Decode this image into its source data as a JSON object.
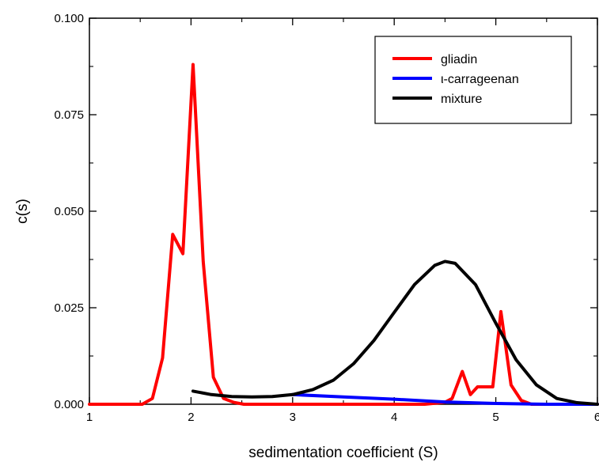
{
  "chart_data": {
    "type": "line",
    "xlabel": "sedimentation coefficient (S)",
    "ylabel": "c(s)",
    "xlim": [
      1,
      6
    ],
    "ylim": [
      0,
      0.1
    ],
    "x_ticks": [
      "1",
      "2",
      "3",
      "4",
      "5",
      "6"
    ],
    "y_ticks": [
      "0.000",
      "0.025",
      "0.050",
      "0.075",
      "0.100"
    ],
    "grid": false,
    "legend_position": "top-right",
    "series": [
      {
        "name": "gliadin",
        "color": "#ff0000",
        "x": [
          1.0,
          1.2,
          1.4,
          1.52,
          1.62,
          1.72,
          1.82,
          1.92,
          2.02,
          2.12,
          2.22,
          2.32,
          2.42,
          2.52,
          2.7,
          3.0,
          3.5,
          4.0,
          4.3,
          4.5,
          4.57,
          4.67,
          4.75,
          4.82,
          4.9,
          4.97,
          5.05,
          5.15,
          5.25,
          5.35,
          5.5,
          5.8,
          6.0
        ],
        "y": [
          0.0,
          0.0,
          0.0,
          0.0,
          0.0015,
          0.012,
          0.044,
          0.039,
          0.088,
          0.037,
          0.007,
          0.0015,
          0.0005,
          0.0,
          0.0,
          0.0,
          0.0,
          0.0,
          0.0,
          0.0005,
          0.0015,
          0.0085,
          0.0025,
          0.0045,
          0.0045,
          0.0045,
          0.024,
          0.005,
          0.001,
          0.0,
          0.0,
          0.0,
          0.0
        ]
      },
      {
        "name": "ι-carrageenan",
        "color": "#0000ff",
        "x": [
          3.0,
          3.5,
          4.0,
          4.5,
          5.0,
          5.5,
          6.0
        ],
        "y": [
          0.0025,
          0.0019,
          0.0013,
          0.0006,
          0.0002,
          0.0,
          0.0
        ]
      },
      {
        "name": "mixture",
        "color": "#000000",
        "x": [
          2.02,
          2.2,
          2.4,
          2.6,
          2.8,
          3.0,
          3.2,
          3.4,
          3.6,
          3.8,
          4.0,
          4.2,
          4.4,
          4.5,
          4.6,
          4.8,
          5.0,
          5.2,
          5.4,
          5.6,
          5.8,
          6.0
        ],
        "y": [
          0.0034,
          0.0025,
          0.002,
          0.0019,
          0.002,
          0.0025,
          0.0038,
          0.0062,
          0.0105,
          0.0165,
          0.0238,
          0.031,
          0.036,
          0.037,
          0.0365,
          0.031,
          0.021,
          0.0115,
          0.005,
          0.0015,
          0.0004,
          0.0
        ]
      }
    ]
  }
}
